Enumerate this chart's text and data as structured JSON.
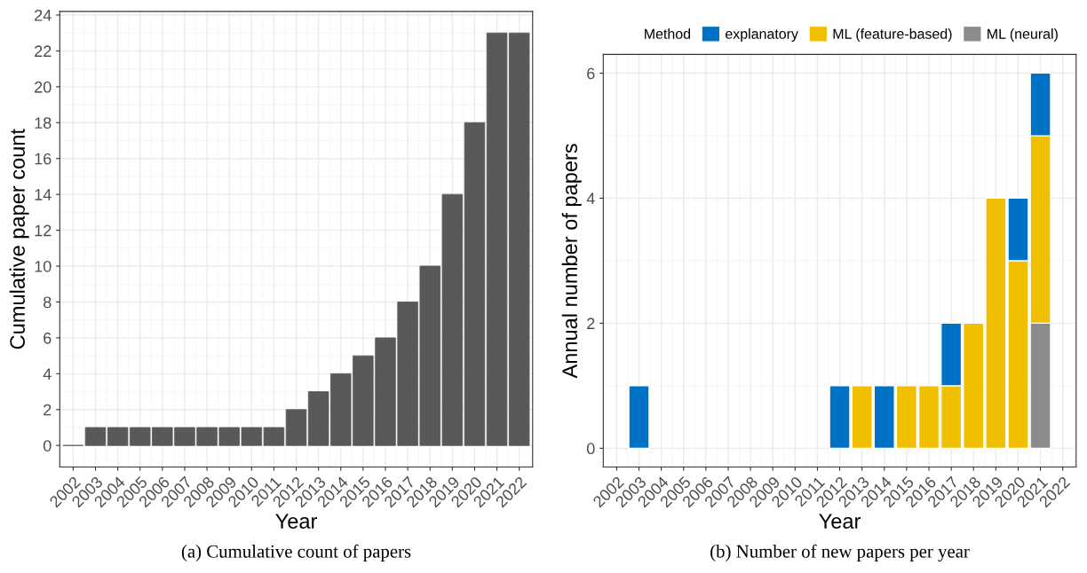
{
  "chart_data": [
    {
      "type": "bar",
      "xlabel": "Year",
      "ylabel": "Cumulative paper count",
      "categories": [
        "2002",
        "2003",
        "2004",
        "2005",
        "2006",
        "2007",
        "2008",
        "2009",
        "2010",
        "2011",
        "2012",
        "2013",
        "2014",
        "2015",
        "2016",
        "2017",
        "2018",
        "2019",
        "2020",
        "2021",
        "2022"
      ],
      "values": [
        0,
        1,
        1,
        1,
        1,
        1,
        1,
        1,
        1,
        1,
        2,
        3,
        4,
        5,
        6,
        8,
        10,
        14,
        18,
        23,
        23
      ],
      "color": "#595959",
      "ylim": [
        -1.2,
        24.2
      ],
      "yticks": [
        0,
        2,
        4,
        6,
        8,
        10,
        12,
        14,
        16,
        18,
        20,
        22,
        24
      ],
      "grid": true,
      "legend": false,
      "annotations": [
        "(a) Cumulative count of papers"
      ]
    },
    {
      "type": "bar",
      "stacked": true,
      "xlabel": "Year",
      "ylabel": "Annual number of papers",
      "legend_title": "Method",
      "legend": "top",
      "categories": [
        "2002",
        "2003",
        "2004",
        "2005",
        "2006",
        "2007",
        "2008",
        "2009",
        "2010",
        "2011",
        "2012",
        "2013",
        "2014",
        "2015",
        "2016",
        "2017",
        "2018",
        "2019",
        "2020",
        "2021",
        "2022"
      ],
      "series": [
        {
          "name": "ML (neural)",
          "color": "#8c8c8c",
          "values": [
            0,
            0,
            0,
            0,
            0,
            0,
            0,
            0,
            0,
            0,
            0,
            0,
            0,
            0,
            0,
            0,
            0,
            0,
            0,
            2,
            0
          ]
        },
        {
          "name": "ML (feature-based)",
          "color": "#f0c000",
          "values": [
            0,
            0,
            0,
            0,
            0,
            0,
            0,
            0,
            0,
            0,
            0,
            1,
            0,
            1,
            1,
            1,
            2,
            4,
            3,
            3,
            0
          ]
        },
        {
          "name": "explanatory",
          "color": "#0072c6",
          "values": [
            0,
            1,
            0,
            0,
            0,
            0,
            0,
            0,
            0,
            0,
            1,
            0,
            1,
            0,
            0,
            1,
            0,
            0,
            1,
            1,
            0
          ]
        }
      ],
      "ylim": [
        -0.3,
        6.3
      ],
      "yticks": [
        0,
        2,
        4,
        6
      ],
      "grid": true,
      "annotations": [
        "(b) Number of new papers per year"
      ]
    }
  ]
}
